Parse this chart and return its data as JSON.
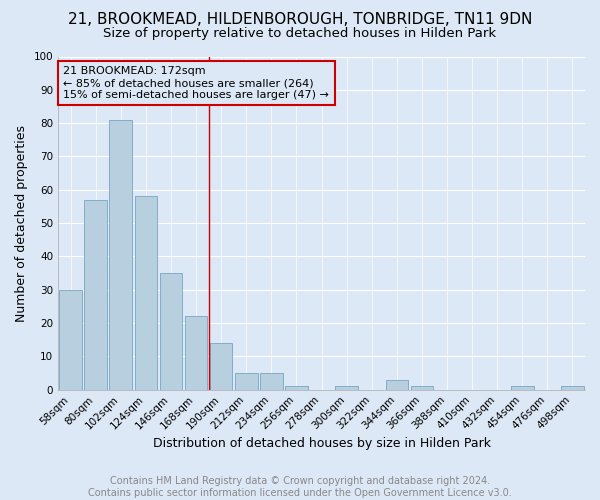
{
  "title": "21, BROOKMEAD, HILDENBOROUGH, TONBRIDGE, TN11 9DN",
  "subtitle": "Size of property relative to detached houses in Hilden Park",
  "xlabel": "Distribution of detached houses by size in Hilden Park",
  "ylabel": "Number of detached properties",
  "footer_line1": "Contains HM Land Registry data © Crown copyright and database right 2024.",
  "footer_line2": "Contains public sector information licensed under the Open Government Licence v3.0.",
  "categories": [
    "58sqm",
    "80sqm",
    "102sqm",
    "124sqm",
    "146sqm",
    "168sqm",
    "190sqm",
    "212sqm",
    "234sqm",
    "256sqm",
    "278sqm",
    "300sqm",
    "322sqm",
    "344sqm",
    "366sqm",
    "388sqm",
    "410sqm",
    "432sqm",
    "454sqm",
    "476sqm",
    "498sqm"
  ],
  "values": [
    30,
    57,
    81,
    58,
    35,
    22,
    14,
    5,
    5,
    1,
    0,
    1,
    0,
    3,
    1,
    0,
    0,
    0,
    1,
    0,
    1
  ],
  "bar_color": "#b8cfe0",
  "bar_edgecolor": "#6699bb",
  "background_color": "#dce8f5",
  "grid_color": "#ffffff",
  "annotation_text": "21 BROOKMEAD: 172sqm\n← 85% of detached houses are smaller (264)\n15% of semi-detached houses are larger (47) →",
  "annotation_box_edgecolor": "#cc0000",
  "vline_x": 5.5,
  "vline_color": "#cc0000",
  "ylim": [
    0,
    100
  ],
  "yticks": [
    0,
    10,
    20,
    30,
    40,
    50,
    60,
    70,
    80,
    90,
    100
  ],
  "title_fontsize": 11,
  "subtitle_fontsize": 9.5,
  "xlabel_fontsize": 9,
  "ylabel_fontsize": 9,
  "tick_fontsize": 7.5,
  "annotation_fontsize": 8,
  "footer_fontsize": 7
}
